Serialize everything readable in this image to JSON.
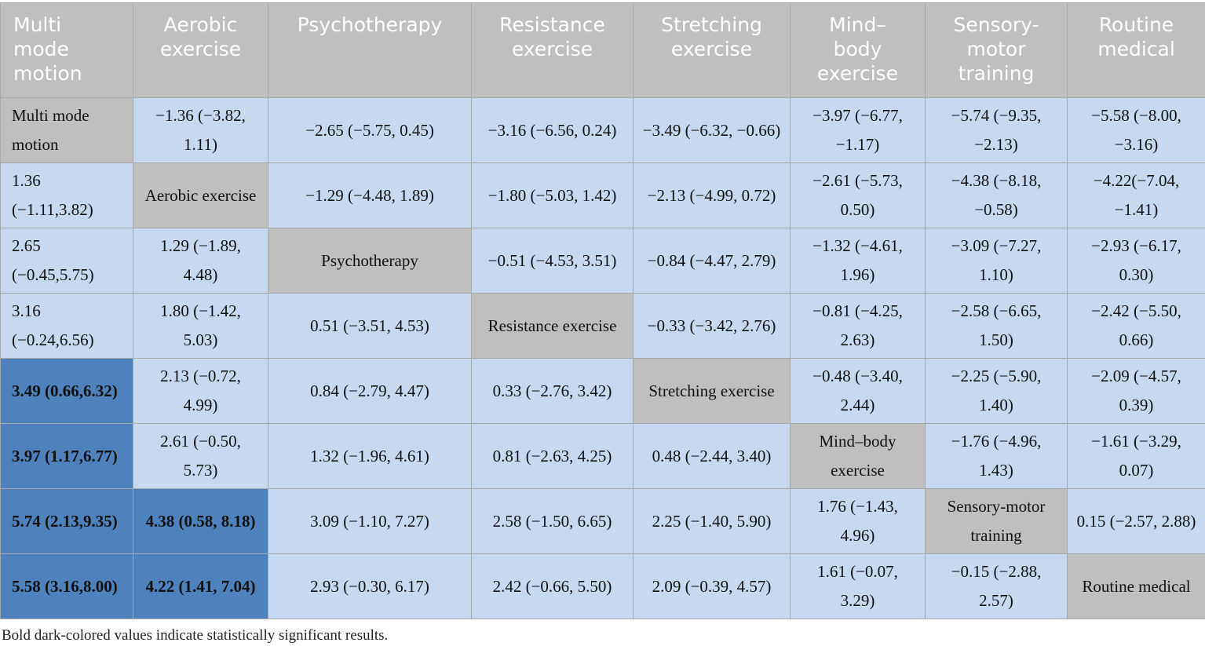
{
  "headers": [
    "Multi\nmode\nmotion",
    "Aerobic\nexercise",
    "Psychotherapy",
    "Resistance\nexercise",
    "Stretching\nexercise",
    "Mind–\nbody\nexercise",
    "Sensory-\nmotor\ntraining",
    "Routine\nmedical"
  ],
  "rows": [
    [
      {
        "t": "Multi mode motion",
        "k": "d"
      },
      {
        "t": "−1.36 (−3.82, 1.11)",
        "k": "n"
      },
      {
        "t": "−2.65 (−5.75, 0.45)",
        "k": "n"
      },
      {
        "t": "−3.16 (−6.56, 0.24)",
        "k": "n"
      },
      {
        "t": "−3.49 (−6.32, −0.66)",
        "k": "n"
      },
      {
        "t": "−3.97 (−6.77, −1.17)",
        "k": "n"
      },
      {
        "t": "−5.74 (−9.35, −2.13)",
        "k": "n"
      },
      {
        "t": "−5.58 (−8.00, −3.16)",
        "k": "n"
      }
    ],
    [
      {
        "t": "1.36 (−1.11,3.82)",
        "k": "n"
      },
      {
        "t": "Aerobic exercise",
        "k": "d"
      },
      {
        "t": "−1.29 (−4.48, 1.89)",
        "k": "n"
      },
      {
        "t": "−1.80 (−5.03, 1.42)",
        "k": "n"
      },
      {
        "t": "−2.13 (−4.99, 0.72)",
        "k": "n"
      },
      {
        "t": "−2.61 (−5.73, 0.50)",
        "k": "n"
      },
      {
        "t": "−4.38 (−8.18, −0.58)",
        "k": "n"
      },
      {
        "t": "−4.22(−7.04, −1.41)",
        "k": "n"
      }
    ],
    [
      {
        "t": "2.65 (−0.45,5.75)",
        "k": "n"
      },
      {
        "t": "1.29 (−1.89, 4.48)",
        "k": "n"
      },
      {
        "t": "Psychotherapy",
        "k": "d"
      },
      {
        "t": "−0.51 (−4.53, 3.51)",
        "k": "n"
      },
      {
        "t": "−0.84 (−4.47, 2.79)",
        "k": "n"
      },
      {
        "t": "−1.32 (−4.61, 1.96)",
        "k": "n"
      },
      {
        "t": "−3.09 (−7.27, 1.10)",
        "k": "n"
      },
      {
        "t": "−2.93 (−6.17, 0.30)",
        "k": "n"
      }
    ],
    [
      {
        "t": "3.16 (−0.24,6.56)",
        "k": "n"
      },
      {
        "t": "1.80 (−1.42, 5.03)",
        "k": "n"
      },
      {
        "t": "0.51 (−3.51, 4.53)",
        "k": "n"
      },
      {
        "t": "Resistance exercise",
        "k": "d"
      },
      {
        "t": "−0.33 (−3.42, 2.76)",
        "k": "n"
      },
      {
        "t": "−0.81 (−4.25, 2.63)",
        "k": "n"
      },
      {
        "t": "−2.58 (−6.65, 1.50)",
        "k": "n"
      },
      {
        "t": "−2.42 (−5.50, 0.66)",
        "k": "n"
      }
    ],
    [
      {
        "t": "3.49 (0.66,6.32)",
        "k": "s"
      },
      {
        "t": "2.13 (−0.72, 4.99)",
        "k": "n"
      },
      {
        "t": "0.84 (−2.79, 4.47)",
        "k": "n"
      },
      {
        "t": "0.33 (−2.76, 3.42)",
        "k": "n"
      },
      {
        "t": "Stretching exercise",
        "k": "d"
      },
      {
        "t": "−0.48 (−3.40, 2.44)",
        "k": "n"
      },
      {
        "t": "−2.25 (−5.90, 1.40)",
        "k": "n"
      },
      {
        "t": "−2.09 (−4.57, 0.39)",
        "k": "n"
      }
    ],
    [
      {
        "t": "3.97 (1.17,6.77)",
        "k": "s"
      },
      {
        "t": "2.61 (−0.50, 5.73)",
        "k": "n"
      },
      {
        "t": "1.32 (−1.96, 4.61)",
        "k": "n"
      },
      {
        "t": "0.81 (−2.63, 4.25)",
        "k": "n"
      },
      {
        "t": "0.48 (−2.44, 3.40)",
        "k": "n"
      },
      {
        "t": "Mind–body exercise",
        "k": "d"
      },
      {
        "t": "−1.76 (−4.96, 1.43)",
        "k": "n"
      },
      {
        "t": "−1.61 (−3.29, 0.07)",
        "k": "n"
      }
    ],
    [
      {
        "t": "5.74 (2.13,9.35)",
        "k": "s"
      },
      {
        "t": "4.38 (0.58, 8.18)",
        "k": "s"
      },
      {
        "t": "3.09 (−1.10, 7.27)",
        "k": "n"
      },
      {
        "t": "2.58 (−1.50, 6.65)",
        "k": "n"
      },
      {
        "t": "2.25 (−1.40, 5.90)",
        "k": "n"
      },
      {
        "t": "1.76 (−1.43, 4.96)",
        "k": "n"
      },
      {
        "t": "Sensory-motor training",
        "k": "d"
      },
      {
        "t": "0.15 (−2.57, 2.88)",
        "k": "n"
      }
    ],
    [
      {
        "t": "5.58 (3.16,8.00)",
        "k": "s"
      },
      {
        "t": "4.22 (1.41, 7.04)",
        "k": "s"
      },
      {
        "t": "2.93 (−0.30, 6.17)",
        "k": "n"
      },
      {
        "t": "2.42 (−0.66, 5.50)",
        "k": "n"
      },
      {
        "t": "2.09 (−0.39, 4.57)",
        "k": "n"
      },
      {
        "t": "1.61 (−0.07, 3.29)",
        "k": "n"
      },
      {
        "t": "−0.15 (−2.88, 2.57)",
        "k": "n"
      },
      {
        "t": "Routine medical",
        "k": "d"
      }
    ]
  ],
  "caption": "Bold dark-colored values indicate statistically significant results.",
  "colors": {
    "header_bg": "#bfbfbf",
    "diagonal_bg": "#bfbfbf",
    "cell_bg": "#c6d9f0",
    "significant_bg": "#4f81bd"
  }
}
